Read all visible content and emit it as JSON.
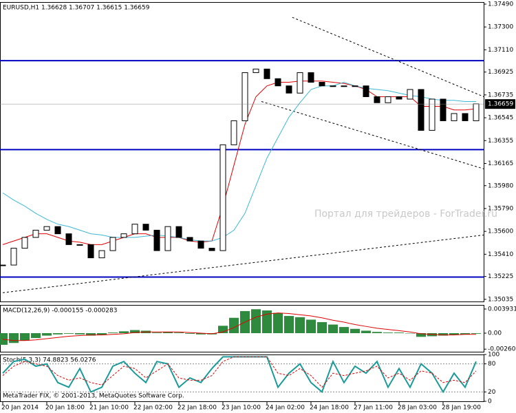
{
  "chart_data": [
    {
      "type": "candlestick",
      "title": "EURUSD,H1 1.36628 1.36707 1.36615 1.36659",
      "watermark": "Портал для трейдеров - ForTrader.ru",
      "categories": [
        "20 Jan 2014",
        null,
        null,
        null,
        "20 Jan 18:00",
        null,
        null,
        null,
        "21 Jan 10:00",
        null,
        null,
        null,
        "22 Jan 02:00",
        null,
        null,
        null,
        "22 Jan 18:00",
        null,
        null,
        null,
        "23 Jan 10:00",
        null,
        null,
        null,
        "24 Jan 02:00",
        null,
        null,
        null,
        "24 Jan 18:00",
        null,
        null,
        null,
        "27 Jan 11:00",
        null,
        null,
        null,
        "28 Jan 03:00",
        null,
        null,
        null,
        "28 Jan 19:00",
        null,
        null,
        null
      ],
      "close": [
        1.3532,
        1.3546,
        1.3555,
        1.3561,
        1.3564,
        1.3558,
        1.3549,
        1.3549,
        1.3538,
        1.3544,
        1.3555,
        1.3558,
        1.3566,
        1.3561,
        1.3544,
        1.3564,
        1.3555,
        1.3552,
        1.3546,
        1.3544,
        1.3632,
        1.3652,
        1.3692,
        1.3695,
        1.3687,
        1.3681,
        1.3675,
        1.3692,
        1.3684,
        1.3681,
        1.3681,
        1.3681,
        1.3681,
        1.3672,
        1.3667,
        1.3672,
        1.367,
        1.3678,
        1.3644,
        1.367,
        1.3652,
        1.3658,
        1.3652,
        1.3666
      ],
      "series": [
        {
          "color": "#e00000",
          "values": [
            1.3549,
            1.3552,
            1.3555,
            1.3558,
            1.3558,
            1.3555,
            1.3552,
            1.3551,
            1.3549,
            1.3549,
            1.3552,
            1.3555,
            1.3558,
            1.3558,
            1.3555,
            1.3555,
            1.3555,
            1.3552,
            1.3551,
            1.3552,
            1.3581,
            1.3615,
            1.3649,
            1.3672,
            1.3681,
            1.3684,
            1.3684,
            1.3685,
            1.3685,
            1.3685,
            1.3684,
            1.3683,
            1.3681,
            1.3678,
            1.3672,
            1.3672,
            1.3672,
            1.3672,
            1.3664,
            1.3664,
            1.3664,
            1.3661,
            1.3661,
            1.3662
          ]
        },
        {
          "color": "#3cb8d8",
          "values": [
            1.3592,
            1.3586,
            1.3581,
            1.3575,
            1.357,
            1.3566,
            1.3564,
            1.3561,
            1.3558,
            1.3557,
            1.3555,
            1.3555,
            1.3555,
            1.3556,
            1.3557,
            1.3556,
            1.3555,
            1.3553,
            1.3552,
            1.3552,
            1.3555,
            1.3561,
            1.3575,
            1.3598,
            1.3621,
            1.3638,
            1.3655,
            1.3667,
            1.3678,
            1.3681,
            1.3681,
            1.3684,
            1.3681,
            1.3679,
            1.3678,
            1.3677,
            1.3675,
            1.3673,
            1.3672,
            1.367,
            1.3669,
            1.3669,
            1.3668,
            1.3668
          ]
        }
      ],
      "levels": [
        1.3702,
        1.3628,
        1.3522
      ],
      "level_color": "#0000c0",
      "trendlines": [
        {
          "from": [
            26.3,
            1.3738
          ],
          "to": [
            43.7,
            1.3672
          ]
        },
        {
          "from": [
            23.5,
            1.3668
          ],
          "to": [
            43.7,
            1.3612
          ]
        },
        {
          "from": [
            0,
            1.3509
          ],
          "to": [
            43.7,
            1.3557
          ]
        }
      ],
      "current": {
        "value": 1.36659,
        "label": "1.36659"
      },
      "ylim": [
        1.35017,
        1.37507
      ],
      "yticks": [
        {
          "value": 1.3749,
          "label": "1.37490"
        },
        {
          "value": 1.373,
          "label": "1.37300"
        },
        {
          "value": 1.3711,
          "label": "1.37110"
        },
        {
          "value": 1.36925,
          "label": "1.36925"
        },
        {
          "value": 1.36735,
          "label": "1.36735"
        },
        {
          "value": 1.36545,
          "label": "1.36545"
        },
        {
          "value": 1.36355,
          "label": "1.36355"
        },
        {
          "value": 1.36165,
          "label": "1.36165"
        },
        {
          "value": 1.3598,
          "label": "1.35980"
        },
        {
          "value": 1.3579,
          "label": "1.35790"
        },
        {
          "value": 1.356,
          "label": "1.35600"
        },
        {
          "value": 1.3541,
          "label": "1.35410"
        },
        {
          "value": 1.35225,
          "label": "1.35225"
        },
        {
          "value": 1.35035,
          "label": "1.35035"
        }
      ]
    },
    {
      "type": "bar",
      "title": "MACD(12,26,9) -0.000155 -0.000283",
      "color": "#2e8b3e",
      "values": [
        -0.0019,
        -0.0016,
        -0.0012,
        -0.0008,
        -0.0004,
        -0.0002,
        -0.0001,
        -0.0002,
        -0.0004,
        -0.0003,
        0.0001,
        0.0003,
        0.0005,
        0.0004,
        0.0001,
        0.0002,
        0.0001,
        -0.0001,
        -0.0002,
        -0.0002,
        0.0012,
        0.0025,
        0.0036,
        0.0039,
        0.0037,
        0.0033,
        0.0028,
        0.0026,
        0.0022,
        0.0018,
        0.0014,
        0.001,
        0.0007,
        0.0004,
        0.0002,
        0.0001,
        0.0001,
        0.0,
        -0.0006,
        -0.0005,
        -0.0004,
        -0.0003,
        -0.0002,
        -0.0001
      ],
      "series": [
        {
          "color": "#e00000",
          "values": [
            -0.001,
            -0.0012,
            -0.0012,
            -0.0011,
            -0.0009,
            -0.0007,
            -0.0005,
            -0.0004,
            -0.0003,
            -0.0003,
            -0.0002,
            -0.0001,
            0.0001,
            0.0002,
            0.0002,
            0.0002,
            0.0002,
            0.0001,
            0.0,
            -0.0001,
            0.0002,
            0.0009,
            0.0018,
            0.0026,
            0.0031,
            0.0033,
            0.0032,
            0.003,
            0.0028,
            0.0025,
            0.0021,
            0.0018,
            0.0014,
            0.0011,
            0.0008,
            0.0006,
            0.0004,
            0.0002,
            -0.0001,
            -0.0002,
            -0.0003,
            -0.0003,
            -0.0002,
            -0.0002
          ]
        }
      ],
      "ylim": [
        -0.00303,
        0.0046
      ],
      "yticks": [
        0.003931,
        {
          "value": 0,
          "label": "0.00"
        },
        -0.002607
      ]
    },
    {
      "type": "line",
      "title": "Stoch(5,3,3) 74.8823 56.0276",
      "footer": "MetaTrader FIX, © 2001-2013, MetaQuotes Software Corp.",
      "series": [
        {
          "color": "#1a9a9a",
          "values": [
            60,
            85,
            90,
            75,
            80,
            40,
            30,
            70,
            20,
            30,
            75,
            85,
            60,
            40,
            85,
            80,
            30,
            50,
            40,
            70,
            95,
            95,
            95,
            95,
            95,
            30,
            60,
            80,
            40,
            20,
            85,
            40,
            75,
            60,
            85,
            30,
            70,
            30,
            80,
            60,
            20,
            60,
            30,
            85
          ]
        },
        {
          "color": "#e00000",
          "values": [
            55,
            75,
            85,
            80,
            75,
            55,
            45,
            50,
            40,
            35,
            55,
            75,
            70,
            50,
            65,
            80,
            50,
            45,
            45,
            55,
            85,
            95,
            95,
            95,
            95,
            60,
            55,
            70,
            55,
            30,
            60,
            55,
            60,
            65,
            75,
            50,
            60,
            45,
            65,
            60,
            40,
            45,
            40,
            65
          ]
        }
      ],
      "levels": [
        80,
        20
      ],
      "ylim": [
        0,
        100
      ],
      "yticks": [
        100,
        80,
        20,
        0
      ]
    }
  ]
}
